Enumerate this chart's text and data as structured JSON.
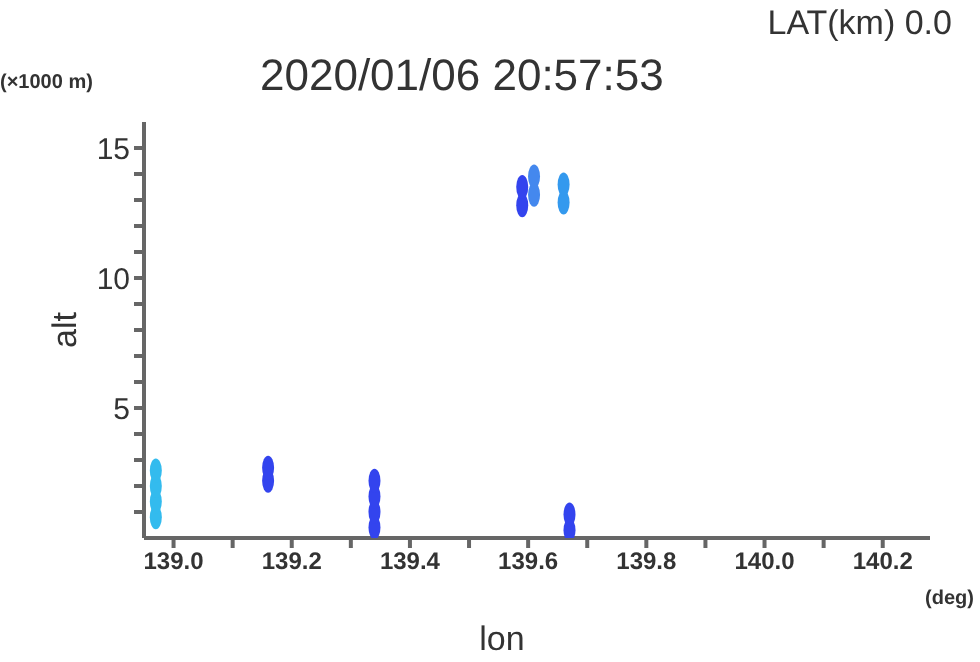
{
  "chart_data": {
    "type": "scatter",
    "title": "2020/01/06 20:57:53",
    "subtitle": "LAT(km) 0.0",
    "xlabel": "lon",
    "ylabel": "alt",
    "annotations": [
      "(×1000 m)",
      "(deg)"
    ],
    "series": [
      {
        "x": [
          138.97,
          138.97,
          138.97,
          138.97,
          139.16,
          139.16,
          139.34,
          139.34,
          139.34,
          139.34,
          139.59,
          139.59,
          139.61,
          139.61,
          139.66,
          139.66,
          139.67,
          139.67
        ],
        "values": [
          0.8,
          1.4,
          2.0,
          2.6,
          2.2,
          2.7,
          0.4,
          1.0,
          1.6,
          2.2,
          12.8,
          13.5,
          13.2,
          13.9,
          12.9,
          13.6,
          0.3,
          0.9
        ],
        "colors": [
          "#33bbee",
          "#33bbee",
          "#33bbee",
          "#33bbee",
          "#3344ee",
          "#3344ee",
          "#3344ee",
          "#3344ee",
          "#3344ee",
          "#3344ee",
          "#3344ee",
          "#3344ee",
          "#4488ee",
          "#4488ee",
          "#3399ee",
          "#3399ee",
          "#3344ee",
          "#3344ee"
        ]
      }
    ],
    "xlim": [
      138.95,
      140.28
    ],
    "ylim": [
      0,
      16
    ],
    "xticks": [
      {
        "value": 139,
        "label": "139.0"
      },
      {
        "value": 139.1,
        "label": null
      },
      139.2,
      {
        "value": 139.3,
        "label": null
      },
      139.4,
      {
        "value": 139.5,
        "label": null
      },
      139.6,
      {
        "value": 139.7,
        "label": null
      },
      139.8,
      {
        "value": 139.9,
        "label": null
      },
      {
        "value": 140,
        "label": "140.0"
      },
      {
        "value": 140.1,
        "label": null
      },
      140.2
    ],
    "yticks": [
      {
        "value": 1,
        "label": null
      },
      {
        "value": 2,
        "label": null
      },
      {
        "value": 3,
        "label": null
      },
      {
        "value": 4,
        "label": null
      },
      5,
      {
        "value": 6,
        "label": null
      },
      {
        "value": 7,
        "label": null
      },
      {
        "value": 8,
        "label": null
      },
      {
        "value": 9,
        "label": null
      },
      10,
      {
        "value": 11,
        "label": null
      },
      {
        "value": 12,
        "label": null
      },
      {
        "value": 13,
        "label": null
      },
      {
        "value": 14,
        "label": null
      },
      15
    ],
    "marker": "circle",
    "grid": false,
    "legend": false
  }
}
